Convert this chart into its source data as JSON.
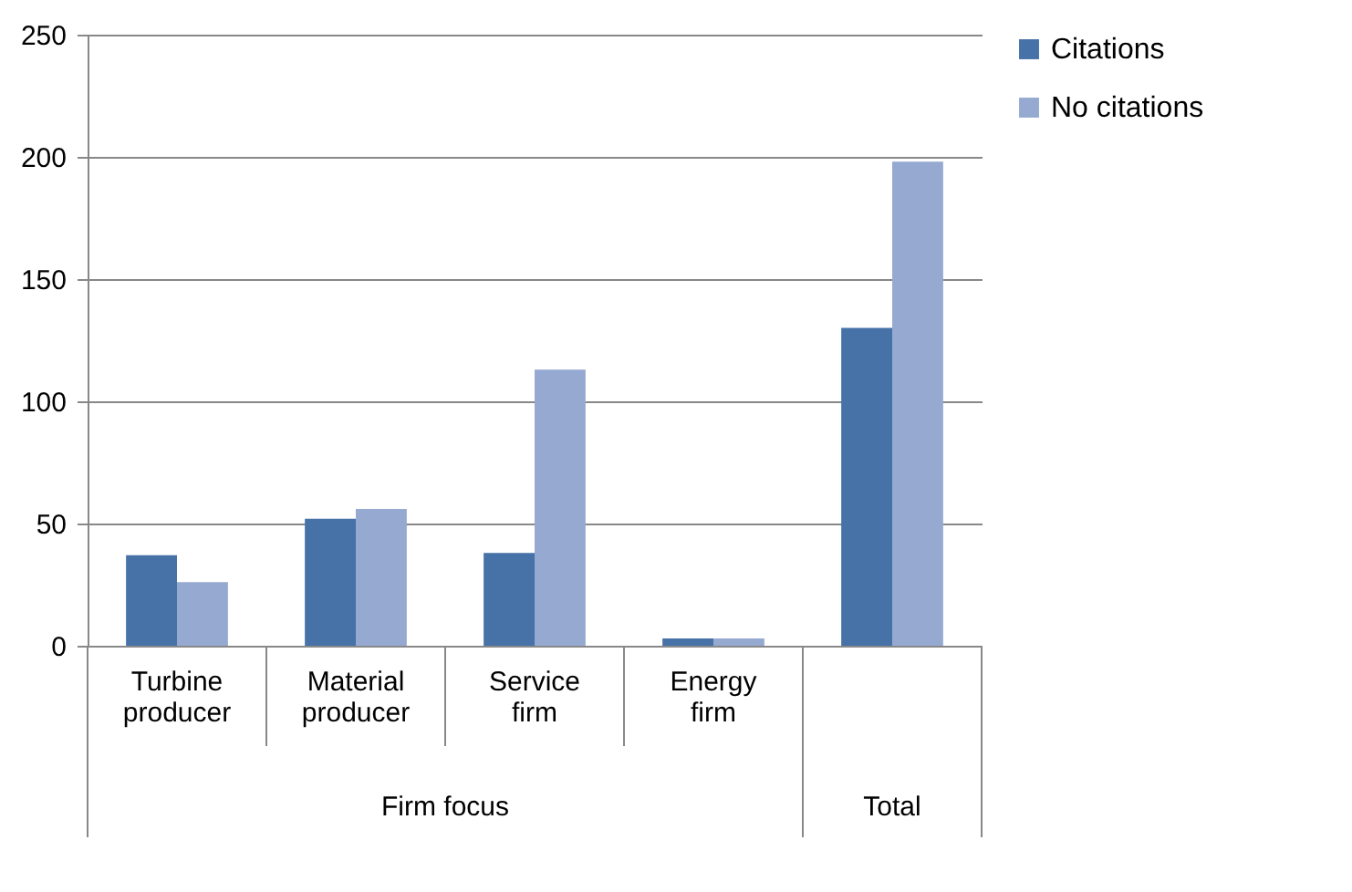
{
  "chart_data": {
    "type": "bar",
    "categories": [
      "Turbine producer",
      "Material producer",
      "Service firm",
      "Energy firm",
      null
    ],
    "series": [
      {
        "name": "Citations",
        "color": "#4672a8",
        "values": [
          37,
          52,
          38,
          3,
          130
        ]
      },
      {
        "name": "No citations",
        "color": "#95a9d1",
        "values": [
          26,
          56,
          113,
          3,
          198
        ]
      }
    ],
    "ylim": [
      0,
      250
    ],
    "yticks": [
      0,
      50,
      100,
      150,
      200,
      250
    ],
    "grid": "y",
    "legend": "right",
    "annotations": [
      "Firm focus",
      "Total"
    ]
  }
}
